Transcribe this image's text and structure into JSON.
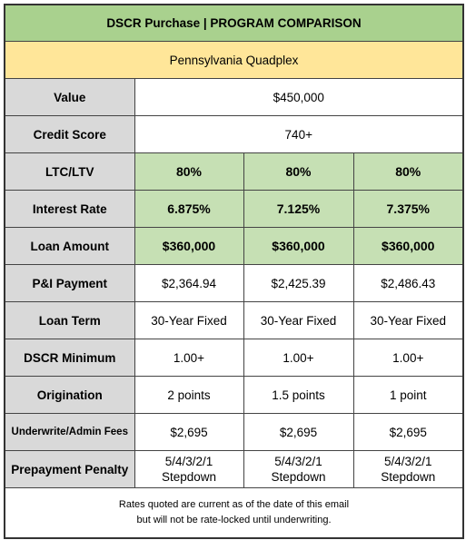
{
  "header": {
    "title": "DSCR Purchase | PROGRAM COMPARISON",
    "subtitle": "Pennsylvania Quadplex"
  },
  "table": {
    "rows": [
      {
        "label": "Value",
        "values": [
          "$450,000"
        ]
      },
      {
        "label": "Credit Score",
        "values": [
          "740+"
        ]
      },
      {
        "label": "LTC/LTV",
        "values": [
          "80%",
          "80%",
          "80%"
        ]
      },
      {
        "label": "Interest Rate",
        "values": [
          "6.875%",
          "7.125%",
          "7.375%"
        ]
      },
      {
        "label": "Loan Amount",
        "values": [
          "$360,000",
          "$360,000",
          "$360,000"
        ]
      },
      {
        "label": "P&I Payment",
        "values": [
          "$2,364.94",
          "$2,425.39",
          "$2,486.43"
        ]
      },
      {
        "label": "Loan Term",
        "values": [
          "30-Year Fixed",
          "30-Year Fixed",
          "30-Year Fixed"
        ]
      },
      {
        "label": "DSCR Minimum",
        "values": [
          "1.00+",
          "1.00+",
          "1.00+"
        ]
      },
      {
        "label": "Origination",
        "values": [
          "2 points",
          "1.5 points",
          "1 point"
        ]
      },
      {
        "label": "Underwrite/Admin Fees",
        "values": [
          "$2,695",
          "$2,695",
          "$2,695"
        ]
      },
      {
        "label": "Prepayment Penalty",
        "values": [
          "5/4/3/2/1 Stepdown",
          "5/4/3/2/1 Stepdown",
          "5/4/3/2/1 Stepdown"
        ]
      }
    ]
  },
  "footer": {
    "lines": [
      "Rates quoted are current as of the date of this email",
      "but will not be rate-locked until underwriting."
    ]
  }
}
